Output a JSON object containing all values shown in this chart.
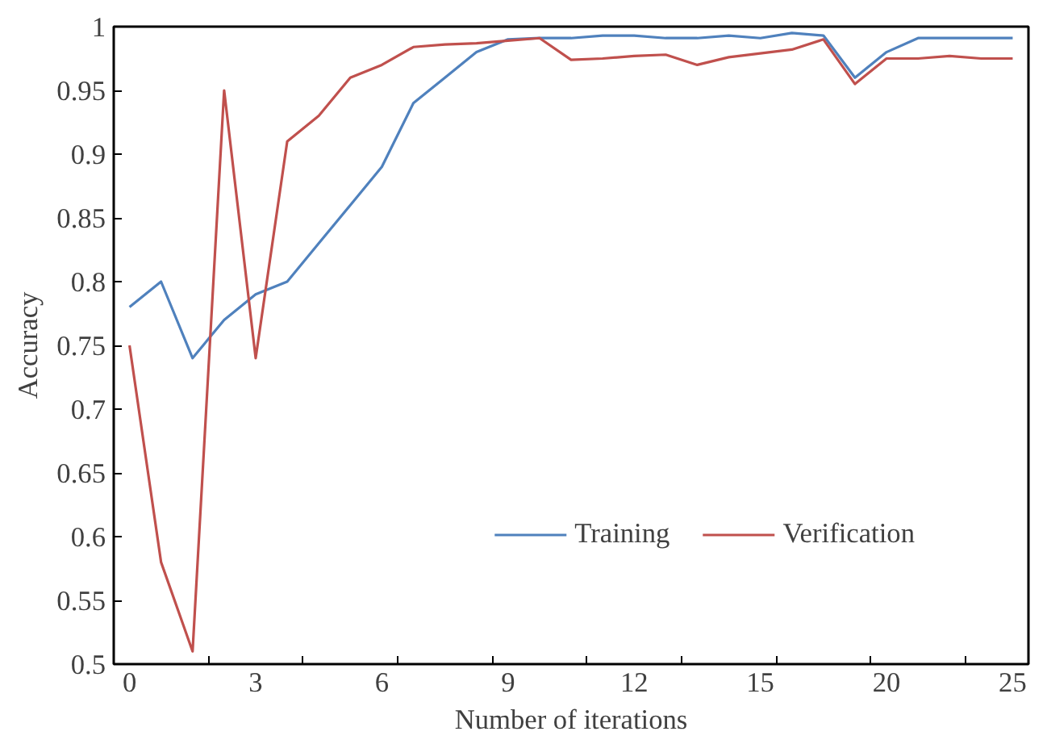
{
  "chart_data": {
    "type": "line",
    "xlabel": "Number of iterations",
    "ylabel": "Accuracy",
    "categories": [
      "0",
      null,
      null,
      null,
      "3",
      null,
      null,
      null,
      "6",
      null,
      null,
      null,
      "9",
      null,
      null,
      null,
      "12",
      null,
      null,
      null,
      "15",
      null,
      null,
      null,
      "20",
      null,
      null,
      null,
      "25"
    ],
    "ylim": [
      0.5,
      1
    ],
    "yticks": [
      0.5,
      0.55,
      0.6,
      0.65,
      0.7,
      0.75,
      0.8,
      0.85,
      0.9,
      0.95,
      1
    ],
    "series": [
      {
        "name": "Training",
        "color": "#4f81bd",
        "values": [
          0.78,
          0.8,
          0.74,
          0.77,
          0.79,
          0.8,
          0.83,
          0.86,
          0.89,
          0.94,
          0.96,
          0.98,
          0.99,
          0.991,
          0.991,
          0.993,
          0.993,
          0.991,
          0.991,
          0.993,
          0.991,
          0.995,
          0.993,
          0.96,
          0.98,
          0.991,
          0.991,
          0.991,
          0.991
        ]
      },
      {
        "name": "Verification",
        "color": "#c0504d",
        "values": [
          0.75,
          0.58,
          0.51,
          0.95,
          0.74,
          0.91,
          0.93,
          0.96,
          0.97,
          0.984,
          0.986,
          0.987,
          0.989,
          0.991,
          0.974,
          0.975,
          0.977,
          0.978,
          0.97,
          0.976,
          0.979,
          0.982,
          0.99,
          0.955,
          0.975,
          0.975,
          0.977,
          0.975,
          0.975
        ]
      }
    ],
    "legend": "bottom right",
    "grid": false,
    "marker": "none",
    "line_style": "solid"
  }
}
